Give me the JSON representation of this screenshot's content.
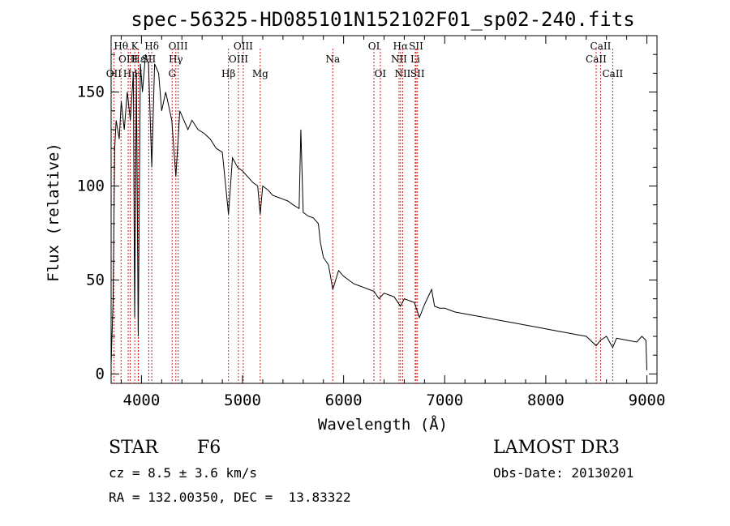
{
  "chart_data": {
    "type": "line",
    "title": "spec-56325-HD085101N152102F01_sp02-240.fits",
    "xlabel": "Wavelength (Å)",
    "ylabel": "Flux (relative)",
    "xlim": [
      3700,
      9100
    ],
    "ylim": [
      -5,
      180
    ],
    "x_ticks": [
      4000,
      5000,
      6000,
      7000,
      8000,
      9000
    ],
    "x_tick_labels": [
      "4000",
      "5000",
      "6000",
      "7000",
      "8000",
      "9000"
    ],
    "y_ticks": [
      0,
      50,
      100,
      150
    ],
    "y_tick_labels": [
      "0",
      "50",
      "100",
      "150"
    ],
    "grid": false,
    "series": [
      {
        "name": "flux",
        "x": [
          3700,
          3720,
          3735,
          3750,
          3780,
          3800,
          3830,
          3860,
          3890,
          3920,
          3933,
          3950,
          3968,
          3990,
          4010,
          4040,
          4070,
          4102,
          4130,
          4170,
          4200,
          4240,
          4280,
          4300,
          4340,
          4380,
          4420,
          4460,
          4500,
          4560,
          4620,
          4680,
          4740,
          4800,
          4861,
          4900,
          4950,
          5000,
          5050,
          5100,
          5150,
          5175,
          5200,
          5250,
          5300,
          5350,
          5400,
          5450,
          5500,
          5560,
          5577,
          5600,
          5650,
          5700,
          5750,
          5770,
          5800,
          5850,
          5893,
          5950,
          6000,
          6050,
          6100,
          6150,
          6200,
          6250,
          6300,
          6350,
          6400,
          6450,
          6500,
          6563,
          6600,
          6650,
          6700,
          6750,
          6800,
          6870,
          6900,
          6950,
          7000,
          7050,
          7100,
          7200,
          7300,
          7400,
          7500,
          7600,
          7700,
          7800,
          7900,
          8000,
          8100,
          8200,
          8300,
          8400,
          8498,
          8542,
          8600,
          8662,
          8700,
          8800,
          8900,
          8950,
          8990,
          9000
        ],
        "y": [
          5,
          40,
          120,
          135,
          125,
          145,
          130,
          150,
          135,
          160,
          30,
          160,
          20,
          165,
          150,
          170,
          165,
          110,
          165,
          160,
          140,
          150,
          140,
          135,
          105,
          140,
          135,
          130,
          135,
          130,
          128,
          125,
          120,
          118,
          85,
          115,
          110,
          108,
          105,
          102,
          100,
          85,
          100,
          98,
          95,
          94,
          93,
          92,
          90,
          88,
          130,
          86,
          84,
          83,
          80,
          70,
          62,
          58,
          45,
          55,
          52,
          50,
          48,
          47,
          46,
          45,
          44,
          40,
          43,
          42,
          41,
          36,
          40,
          39,
          38,
          30,
          37,
          45,
          36,
          35,
          35,
          34,
          33,
          32,
          31,
          30,
          29,
          28,
          27,
          26,
          25,
          24,
          23,
          22,
          21,
          20,
          15,
          18,
          20,
          14,
          19,
          18,
          17,
          20,
          18,
          2
        ]
      }
    ],
    "line_annotations": [
      {
        "label": "OII",
        "wavelength": 3727,
        "row": 3
      },
      {
        "label": "Hθ",
        "wavelength": 3798,
        "row": 1
      },
      {
        "label": "OIII",
        "wavelength": 3869,
        "row": 2
      },
      {
        "label": "Hη",
        "wavelength": 3889,
        "row": 3
      },
      {
        "label": "CaII K",
        "display": "K",
        "wavelength": 3934,
        "row": 1
      },
      {
        "label": "Hε",
        "wavelength": 3970,
        "row": 2
      },
      {
        "label": "H",
        "wavelength": 3968,
        "row": 3
      },
      {
        "label": "SII",
        "wavelength": 4072,
        "row": 2
      },
      {
        "label": "Hδ",
        "wavelength": 4102,
        "row": 1
      },
      {
        "label": "OIII",
        "wavelength": 4363,
        "row": 1
      },
      {
        "label": "Hγ",
        "wavelength": 4340,
        "row": 2
      },
      {
        "label": "G",
        "wavelength": 4304,
        "row": 3
      },
      {
        "label": "Hβ",
        "wavelength": 4861,
        "row": 3
      },
      {
        "label": "OIII",
        "wavelength": 5007,
        "row": 1
      },
      {
        "label": "OIII",
        "wavelength": 4959,
        "row": 2
      },
      {
        "label": "Mg",
        "wavelength": 5175,
        "row": 3
      },
      {
        "label": "Na",
        "wavelength": 5893,
        "row": 2
      },
      {
        "label": "OI",
        "wavelength": 6300,
        "row": 1
      },
      {
        "label": "OI",
        "wavelength": 6363,
        "row": 3
      },
      {
        "label": "Hα",
        "wavelength": 6563,
        "row": 1
      },
      {
        "label": "NII",
        "wavelength": 6548,
        "row": 2
      },
      {
        "label": "NII",
        "wavelength": 6584,
        "row": 3
      },
      {
        "label": "SII",
        "wavelength": 6717,
        "row": 1
      },
      {
        "label": "Li",
        "wavelength": 6708,
        "row": 2
      },
      {
        "label": "SII",
        "wavelength": 6731,
        "row": 3
      },
      {
        "label": "CaII",
        "wavelength": 8542,
        "row": 1
      },
      {
        "label": "CaII",
        "wavelength": 8498,
        "row": 2
      },
      {
        "label": "CaII",
        "wavelength": 8662,
        "row": 3
      }
    ]
  },
  "info": {
    "object_class": "STAR",
    "subclass": "F6",
    "survey": "LAMOST DR3",
    "redshift": "cz = 8.5 ± 3.6 km/s",
    "obs_date": "Obs-Date: 20130201",
    "coords": "RA = 132.00350, DEC =  13.83322"
  }
}
